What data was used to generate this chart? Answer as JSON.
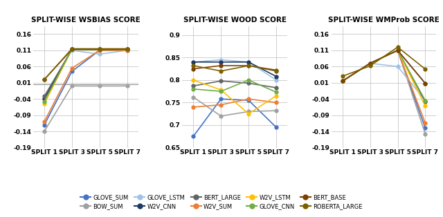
{
  "splits": [
    1,
    3,
    5,
    7
  ],
  "xtick_labels": [
    "SPLIT 1",
    "SPLIT 3",
    "SPLIT 5",
    "SPLIT 7"
  ],
  "models": [
    "GLOVE_SUM",
    "BOW_SUM",
    "GLOVE_LSTM",
    "W2V_CNN",
    "BERT_LARGE",
    "W2V_SUM",
    "W2V_LSTM",
    "GLOVE_CNN",
    "BERT_BASE",
    "ROBERTA_LARGE"
  ],
  "colors": {
    "GLOVE_SUM": "#4472C4",
    "BOW_SUM": "#A0A0A0",
    "GLOVE_LSTM": "#9DC3E6",
    "W2V_CNN": "#1F3864",
    "BERT_LARGE": "#636363",
    "W2V_SUM": "#ED7D31",
    "W2V_LSTM": "#FFC000",
    "GLOVE_CNN": "#70AD47",
    "BERT_BASE": "#7B3F00",
    "ROBERTA_LARGE": "#7B6000"
  },
  "wsbias": {
    "GLOVE_SUM": [
      -0.12,
      0.045,
      0.11,
      0.11
    ],
    "BOW_SUM": [
      -0.14,
      0.0,
      0.0,
      0.0
    ],
    "GLOVE_LSTM": [
      -0.035,
      0.11,
      0.098,
      0.11
    ],
    "W2V_CNN": [
      -0.04,
      0.113,
      0.113,
      0.113
    ],
    "BERT_LARGE": [
      -0.032,
      0.113,
      0.113,
      0.113
    ],
    "W2V_SUM": [
      -0.11,
      0.055,
      0.11,
      0.11
    ],
    "W2V_LSTM": [
      -0.055,
      0.113,
      0.113,
      0.113
    ],
    "GLOVE_CNN": [
      -0.048,
      0.113,
      0.113,
      0.113
    ],
    "BERT_BASE": [
      0.02,
      0.113,
      0.113,
      0.113
    ],
    "ROBERTA_LARGE": [
      0.02,
      0.115,
      0.115,
      0.115
    ]
  },
  "wood": {
    "GLOVE_SUM": [
      0.675,
      0.758,
      0.755,
      0.695
    ],
    "BOW_SUM": [
      0.762,
      0.72,
      0.73,
      0.732
    ],
    "GLOVE_LSTM": [
      0.84,
      0.845,
      0.84,
      0.8
    ],
    "W2V_CNN": [
      0.84,
      0.84,
      0.84,
      0.808
    ],
    "BERT_LARGE": [
      0.787,
      0.798,
      0.793,
      0.783
    ],
    "W2V_SUM": [
      0.74,
      0.745,
      0.758,
      0.75
    ],
    "W2V_LSTM": [
      0.8,
      0.778,
      0.725,
      0.765
    ],
    "GLOVE_CNN": [
      0.78,
      0.775,
      0.8,
      0.773
    ],
    "BERT_BASE": [
      0.825,
      0.832,
      0.832,
      0.822
    ],
    "ROBERTA_LARGE": [
      0.832,
      0.82,
      0.832,
      0.82
    ]
  },
  "wmprob": {
    "GLOVE_SUM": [
      0.015,
      0.07,
      0.11,
      -0.13
    ],
    "BOW_SUM": [
      0.015,
      0.07,
      0.11,
      -0.148
    ],
    "GLOVE_LSTM": [
      0.015,
      0.07,
      0.06,
      -0.045
    ],
    "W2V_CNN": [
      0.015,
      0.07,
      0.11,
      -0.048
    ],
    "BERT_LARGE": [
      0.015,
      0.07,
      0.11,
      0.008
    ],
    "W2V_SUM": [
      0.015,
      0.07,
      0.11,
      -0.115
    ],
    "W2V_LSTM": [
      0.015,
      0.07,
      0.11,
      -0.062
    ],
    "GLOVE_CNN": [
      0.015,
      0.07,
      0.11,
      -0.045
    ],
    "BERT_BASE": [
      0.015,
      0.07,
      0.11,
      0.008
    ],
    "ROBERTA_LARGE": [
      0.03,
      0.062,
      0.12,
      0.052
    ]
  },
  "wsbias_ylim": [
    -0.19,
    0.185
  ],
  "wsbias_yticks": [
    -0.19,
    -0.14,
    -0.09,
    -0.04,
    0.01,
    0.06,
    0.11,
    0.16
  ],
  "wood_ylim": [
    0.65,
    0.92
  ],
  "wood_yticks": [
    0.65,
    0.7,
    0.75,
    0.8,
    0.85,
    0.9
  ],
  "wmprob_ylim": [
    -0.19,
    0.185
  ],
  "wmprob_yticks": [
    -0.19,
    -0.14,
    -0.09,
    -0.04,
    0.01,
    0.06,
    0.11,
    0.16
  ],
  "legend_order": [
    "GLOVE_SUM",
    "BOW_SUM",
    "GLOVE_LSTM",
    "W2V_CNN",
    "BERT_LARGE",
    "W2V_SUM",
    "W2V_LSTM",
    "GLOVE_CNN",
    "BERT_BASE",
    "ROBERTA_LARGE"
  ]
}
